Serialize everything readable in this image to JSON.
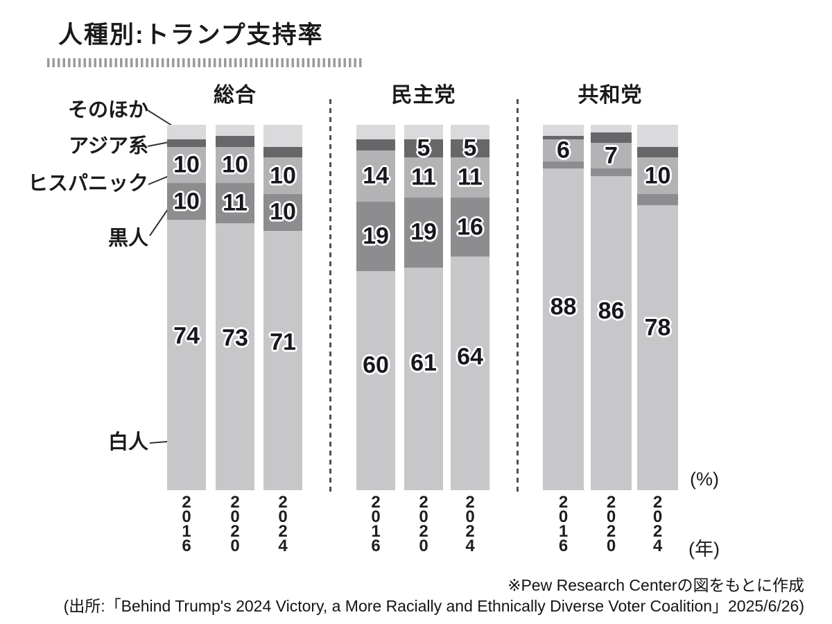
{
  "title": "人種別:トランプ支持率",
  "axis": {
    "percent_label": "(%)",
    "year_label": "(年)"
  },
  "source": {
    "note": "※Pew Research Centerの図をもとに作成",
    "citation": "(出所:「Behind Trump's 2024 Victory, a More Racially and Ethnically Diverse Voter Coalition」2025/6/26)"
  },
  "legend": [
    {
      "id": "other",
      "label": "そのほか"
    },
    {
      "id": "asian",
      "label": "アジア系"
    },
    {
      "id": "hispanic",
      "label": "ヒスパニック"
    },
    {
      "id": "black",
      "label": "黒人"
    },
    {
      "id": "white",
      "label": "白人"
    }
  ],
  "colors": {
    "white": "#c7c7c9",
    "black": "#8d8d8f",
    "hispanic": "#b3b3b5",
    "asian": "#67676a",
    "other": "#dadadc"
  },
  "chart_data": {
    "type": "bar",
    "subtype": "stacked-100-percent",
    "title": "人種別:トランプ支持率",
    "ylim": [
      0,
      100
    ],
    "unit": "%",
    "stack_order_top_to_bottom": [
      "other",
      "asian",
      "hispanic",
      "black",
      "white"
    ],
    "categories": [
      "2016",
      "2020",
      "2024"
    ],
    "groups": [
      {
        "label": "総合",
        "bars": [
          {
            "year": "2016",
            "segments": {
              "white": 74,
              "black": 10,
              "hispanic": 10,
              "asian": 2,
              "other": 4
            },
            "shown_labels": {
              "white": "74",
              "black": "10",
              "hispanic": "10"
            }
          },
          {
            "year": "2020",
            "segments": {
              "white": 73,
              "black": 11,
              "hispanic": 10,
              "asian": 3,
              "other": 3
            },
            "shown_labels": {
              "white": "73",
              "black": "11",
              "hispanic": "10"
            }
          },
          {
            "year": "2024",
            "segments": {
              "white": 71,
              "black": 10,
              "hispanic": 10,
              "asian": 3,
              "other": 6
            },
            "shown_labels": {
              "white": "71",
              "black": "10",
              "hispanic": "10"
            }
          }
        ]
      },
      {
        "label": "民主党",
        "bars": [
          {
            "year": "2016",
            "segments": {
              "white": 60,
              "black": 19,
              "hispanic": 14,
              "asian": 3,
              "other": 4
            },
            "shown_labels": {
              "white": "60",
              "black": "19",
              "hispanic": "14"
            }
          },
          {
            "year": "2020",
            "segments": {
              "white": 61,
              "black": 19,
              "hispanic": 11,
              "asian": 5,
              "other": 4
            },
            "shown_labels": {
              "white": "61",
              "black": "19",
              "hispanic": "11",
              "asian": "5"
            }
          },
          {
            "year": "2024",
            "segments": {
              "white": 64,
              "black": 16,
              "hispanic": 11,
              "asian": 5,
              "other": 4
            },
            "shown_labels": {
              "white": "64",
              "black": "16",
              "hispanic": "11",
              "asian": "5"
            }
          }
        ]
      },
      {
        "label": "共和党",
        "bars": [
          {
            "year": "2016",
            "segments": {
              "white": 88,
              "black": 2,
              "hispanic": 6,
              "asian": 1,
              "other": 3
            },
            "shown_labels": {
              "white": "88",
              "hispanic": "6"
            }
          },
          {
            "year": "2020",
            "segments": {
              "white": 86,
              "black": 2,
              "hispanic": 7,
              "asian": 3,
              "other": 2
            },
            "shown_labels": {
              "white": "86",
              "hispanic": "7"
            }
          },
          {
            "year": "2024",
            "segments": {
              "white": 78,
              "black": 3,
              "hispanic": 10,
              "asian": 3,
              "other": 6
            },
            "shown_labels": {
              "white": "78",
              "hispanic": "10"
            }
          }
        ]
      }
    ]
  }
}
